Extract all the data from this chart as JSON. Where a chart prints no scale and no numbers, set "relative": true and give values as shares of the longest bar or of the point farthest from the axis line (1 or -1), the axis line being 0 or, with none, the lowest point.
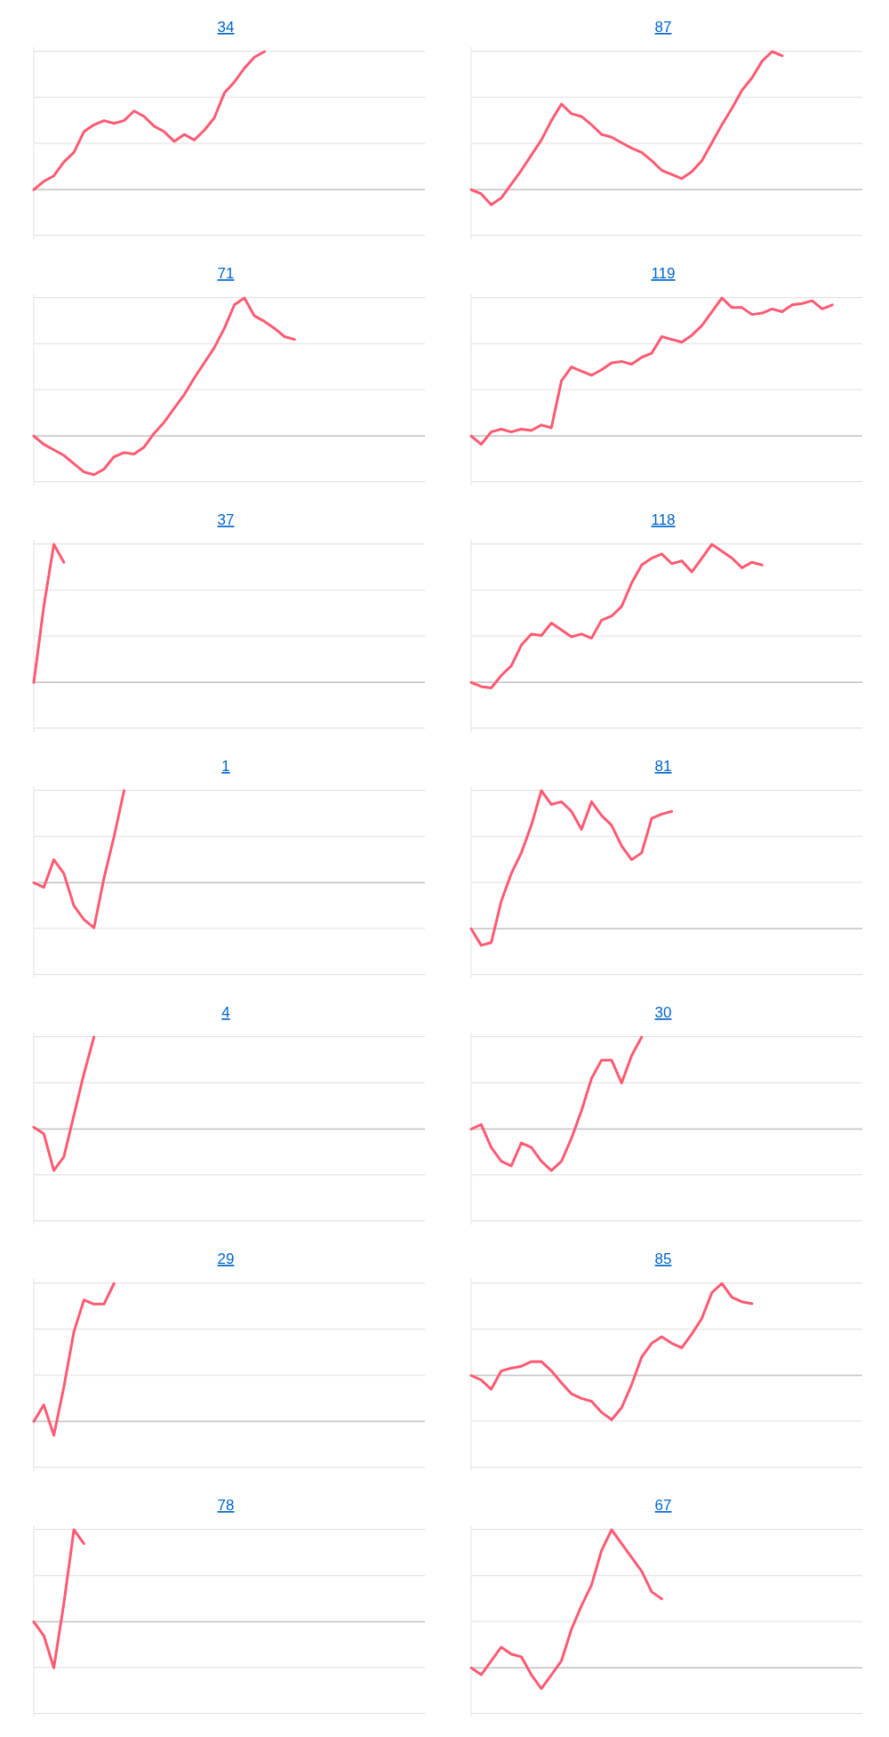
{
  "chart_data": [
    {
      "type": "line",
      "title": "34",
      "relative": true,
      "categories": [
        null,
        null,
        null,
        null,
        null,
        null,
        null,
        null,
        null,
        null,
        null,
        null,
        null,
        null,
        null,
        null,
        null,
        null,
        null,
        null,
        null,
        null,
        null,
        null,
        null,
        null,
        null,
        null,
        null,
        null,
        null,
        null,
        null,
        null,
        null,
        null,
        null,
        null,
        null,
        null
      ],
      "series": [
        {
          "color": "#ff5a72",
          "values": [
            0,
            0.06,
            0.1,
            0.2,
            0.27,
            0.42,
            0.47,
            0.5,
            0.48,
            0.5,
            0.57,
            0.53,
            0.46,
            0.42,
            0.35,
            0.4,
            0.36,
            0.43,
            0.52,
            0.7,
            0.78,
            0.88,
            0.96,
            1,
            null,
            null,
            null,
            null,
            null,
            null,
            null,
            null,
            null,
            null,
            null,
            null,
            null,
            null,
            null,
            null
          ]
        }
      ]
    },
    {
      "type": "line",
      "title": "87",
      "relative": true,
      "categories": [
        null,
        null,
        null,
        null,
        null,
        null,
        null,
        null,
        null,
        null,
        null,
        null,
        null,
        null,
        null,
        null,
        null,
        null,
        null,
        null,
        null,
        null,
        null,
        null,
        null,
        null,
        null,
        null,
        null,
        null,
        null,
        null,
        null,
        null,
        null,
        null,
        null,
        null,
        null,
        null
      ],
      "series": [
        {
          "color": "#ff5a72",
          "values": [
            0,
            -0.03,
            -0.11,
            -0.06,
            0.04,
            0.14,
            0.25,
            0.36,
            0.5,
            0.62,
            0.55,
            0.53,
            0.47,
            0.4,
            0.38,
            0.34,
            0.3,
            0.27,
            0.21,
            0.14,
            0.11,
            0.08,
            0.13,
            0.21,
            0.34,
            0.47,
            0.59,
            0.72,
            0.81,
            0.93,
            1,
            0.97,
            null,
            null,
            null,
            null,
            null,
            null,
            null,
            null
          ]
        }
      ]
    },
    {
      "type": "line",
      "title": "71",
      "relative": true,
      "categories": [
        null,
        null,
        null,
        null,
        null,
        null,
        null,
        null,
        null,
        null,
        null,
        null,
        null,
        null,
        null,
        null,
        null,
        null,
        null,
        null,
        null,
        null,
        null,
        null,
        null,
        null,
        null,
        null,
        null,
        null,
        null,
        null,
        null,
        null,
        null,
        null,
        null,
        null,
        null,
        null
      ],
      "series": [
        {
          "color": "#ff5a72",
          "values": [
            0,
            -0.06,
            -0.1,
            -0.14,
            -0.2,
            -0.26,
            -0.28,
            -0.24,
            -0.15,
            -0.12,
            -0.13,
            -0.08,
            0.02,
            0.1,
            0.2,
            0.3,
            0.42,
            0.53,
            0.64,
            0.78,
            0.95,
            1,
            0.87,
            0.83,
            0.78,
            0.72,
            0.7,
            null,
            null,
            null,
            null,
            null,
            null,
            null,
            null,
            null,
            null,
            null,
            null,
            null
          ]
        }
      ]
    },
    {
      "type": "line",
      "title": "119",
      "relative": true,
      "categories": [
        null,
        null,
        null,
        null,
        null,
        null,
        null,
        null,
        null,
        null,
        null,
        null,
        null,
        null,
        null,
        null,
        null,
        null,
        null,
        null,
        null,
        null,
        null,
        null,
        null,
        null,
        null,
        null,
        null,
        null,
        null,
        null,
        null,
        null,
        null,
        null,
        null,
        null,
        null,
        null
      ],
      "series": [
        {
          "color": "#ff5a72",
          "values": [
            0,
            -0.06,
            0.03,
            0.05,
            0.03,
            0.05,
            0.04,
            0.08,
            0.06,
            0.4,
            0.5,
            0.47,
            0.44,
            0.48,
            0.53,
            0.54,
            0.52,
            0.57,
            0.6,
            0.72,
            0.7,
            0.68,
            0.73,
            0.8,
            0.9,
            1,
            0.93,
            0.93,
            0.88,
            0.89,
            0.92,
            0.9,
            0.95,
            0.96,
            0.98,
            0.92,
            0.95,
            null,
            null,
            null
          ]
        }
      ]
    },
    {
      "type": "line",
      "title": "37",
      "relative": true,
      "categories": [
        null,
        null,
        null,
        null,
        null,
        null,
        null,
        null,
        null,
        null,
        null,
        null,
        null,
        null,
        null,
        null,
        null,
        null,
        null,
        null,
        null,
        null,
        null,
        null,
        null,
        null,
        null,
        null,
        null,
        null,
        null,
        null,
        null,
        null,
        null,
        null,
        null,
        null,
        null,
        null
      ],
      "series": [
        {
          "color": "#ff5a72",
          "values": [
            0,
            0.55,
            1,
            0.87,
            null,
            null,
            null,
            null,
            null,
            null,
            null,
            null,
            null,
            null,
            null,
            null,
            null,
            null,
            null,
            null,
            null,
            null,
            null,
            null,
            null,
            null,
            null,
            null,
            null,
            null,
            null,
            null,
            null,
            null,
            null,
            null,
            null,
            null,
            null,
            null
          ]
        }
      ]
    },
    {
      "type": "line",
      "title": "118",
      "relative": true,
      "categories": [
        null,
        null,
        null,
        null,
        null,
        null,
        null,
        null,
        null,
        null,
        null,
        null,
        null,
        null,
        null,
        null,
        null,
        null,
        null,
        null,
        null,
        null,
        null,
        null,
        null,
        null,
        null,
        null,
        null,
        null,
        null,
        null,
        null,
        null,
        null,
        null,
        null,
        null,
        null,
        null
      ],
      "series": [
        {
          "color": "#ff5a72",
          "values": [
            0,
            -0.03,
            -0.04,
            0.05,
            0.12,
            0.27,
            0.35,
            0.34,
            0.43,
            0.38,
            0.33,
            0.35,
            0.32,
            0.45,
            0.48,
            0.55,
            0.72,
            0.85,
            0.9,
            0.93,
            0.86,
            0.88,
            0.8,
            0.9,
            1,
            0.95,
            0.9,
            0.83,
            0.87,
            0.85,
            null,
            null,
            null,
            null,
            null,
            null,
            null,
            null,
            null,
            null
          ]
        }
      ]
    },
    {
      "type": "line",
      "title": "1",
      "relative": true,
      "categories": [
        null,
        null,
        null,
        null,
        null,
        null,
        null,
        null,
        null,
        null,
        null,
        null,
        null,
        null,
        null,
        null,
        null,
        null,
        null,
        null,
        null,
        null,
        null,
        null,
        null,
        null,
        null,
        null,
        null,
        null,
        null,
        null,
        null,
        null,
        null,
        null,
        null,
        null,
        null,
        null
      ],
      "series": [
        {
          "color": "#ff5a72",
          "values": [
            0,
            -0.05,
            0.25,
            0.1,
            -0.25,
            -0.4,
            -0.49,
            0.05,
            0.5,
            1,
            null,
            null,
            null,
            null,
            null,
            null,
            null,
            null,
            null,
            null,
            null,
            null,
            null,
            null,
            null,
            null,
            null,
            null,
            null,
            null,
            null,
            null,
            null,
            null,
            null,
            null,
            null,
            null,
            null,
            null
          ]
        }
      ]
    },
    {
      "type": "line",
      "title": "81",
      "relative": true,
      "categories": [
        null,
        null,
        null,
        null,
        null,
        null,
        null,
        null,
        null,
        null,
        null,
        null,
        null,
        null,
        null,
        null,
        null,
        null,
        null,
        null,
        null,
        null,
        null,
        null,
        null,
        null,
        null,
        null,
        null,
        null,
        null,
        null,
        null,
        null,
        null,
        null,
        null,
        null,
        null,
        null
      ],
      "series": [
        {
          "color": "#ff5a72",
          "values": [
            0,
            -0.12,
            -0.1,
            0.2,
            0.4,
            0.55,
            0.75,
            1,
            0.9,
            0.92,
            0.85,
            0.72,
            0.92,
            0.82,
            0.75,
            0.6,
            0.5,
            0.55,
            0.8,
            0.83,
            0.85,
            null,
            null,
            null,
            null,
            null,
            null,
            null,
            null,
            null,
            null,
            null,
            null,
            null,
            null,
            null,
            null,
            null,
            null,
            null
          ]
        }
      ]
    },
    {
      "type": "line",
      "title": "4",
      "relative": true,
      "categories": [
        null,
        null,
        null,
        null,
        null,
        null,
        null,
        null,
        null,
        null,
        null,
        null,
        null,
        null,
        null,
        null,
        null,
        null,
        null,
        null,
        null,
        null,
        null,
        null,
        null,
        null,
        null,
        null,
        null,
        null,
        null,
        null,
        null,
        null,
        null,
        null,
        null,
        null,
        null,
        null
      ],
      "series": [
        {
          "color": "#ff5a72",
          "values": [
            0.02,
            -0.05,
            -0.45,
            -0.3,
            0.15,
            0.6,
            1,
            null,
            null,
            null,
            null,
            null,
            null,
            null,
            null,
            null,
            null,
            null,
            null,
            null,
            null,
            null,
            null,
            null,
            null,
            null,
            null,
            null,
            null,
            null,
            null,
            null,
            null,
            null,
            null,
            null,
            null,
            null,
            null,
            null
          ]
        }
      ]
    },
    {
      "type": "line",
      "title": "30",
      "relative": true,
      "categories": [
        null,
        null,
        null,
        null,
        null,
        null,
        null,
        null,
        null,
        null,
        null,
        null,
        null,
        null,
        null,
        null,
        null,
        null,
        null,
        null,
        null,
        null,
        null,
        null,
        null,
        null,
        null,
        null,
        null,
        null,
        null,
        null,
        null,
        null,
        null,
        null,
        null,
        null,
        null,
        null
      ],
      "series": [
        {
          "color": "#ff5a72",
          "values": [
            0,
            0.05,
            -0.2,
            -0.35,
            -0.4,
            -0.15,
            -0.2,
            -0.35,
            -0.45,
            -0.35,
            -0.1,
            0.2,
            0.55,
            0.75,
            0.75,
            0.5,
            0.8,
            1,
            null,
            null,
            null,
            null,
            null,
            null,
            null,
            null,
            null,
            null,
            null,
            null,
            null,
            null,
            null,
            null,
            null,
            null,
            null,
            null,
            null,
            null
          ]
        }
      ]
    },
    {
      "type": "line",
      "title": "29",
      "relative": true,
      "categories": [
        null,
        null,
        null,
        null,
        null,
        null,
        null,
        null,
        null,
        null,
        null,
        null,
        null,
        null,
        null,
        null,
        null,
        null,
        null,
        null,
        null,
        null,
        null,
        null,
        null,
        null,
        null,
        null,
        null,
        null,
        null,
        null,
        null,
        null,
        null,
        null,
        null,
        null,
        null,
        null
      ],
      "series": [
        {
          "color": "#ff5a72",
          "values": [
            0,
            0.12,
            -0.1,
            0.25,
            0.65,
            0.88,
            0.85,
            0.85,
            1,
            null,
            null,
            null,
            null,
            null,
            null,
            null,
            null,
            null,
            null,
            null,
            null,
            null,
            null,
            null,
            null,
            null,
            null,
            null,
            null,
            null,
            null,
            null,
            null,
            null,
            null,
            null,
            null,
            null,
            null,
            null
          ]
        }
      ]
    },
    {
      "type": "line",
      "title": "85",
      "relative": true,
      "categories": [
        null,
        null,
        null,
        null,
        null,
        null,
        null,
        null,
        null,
        null,
        null,
        null,
        null,
        null,
        null,
        null,
        null,
        null,
        null,
        null,
        null,
        null,
        null,
        null,
        null,
        null,
        null,
        null,
        null,
        null,
        null,
        null,
        null,
        null,
        null,
        null,
        null,
        null,
        null,
        null
      ],
      "series": [
        {
          "color": "#ff5a72",
          "values": [
            0,
            -0.05,
            -0.15,
            0.05,
            0.08,
            0.1,
            0.15,
            0.15,
            0.05,
            -0.08,
            -0.2,
            -0.25,
            -0.28,
            -0.4,
            -0.48,
            -0.35,
            -0.1,
            0.2,
            0.35,
            0.42,
            0.35,
            0.3,
            0.45,
            0.62,
            0.9,
            1,
            0.85,
            0.8,
            0.78,
            null,
            null,
            null,
            null,
            null,
            null,
            null,
            null,
            null,
            null,
            null
          ]
        }
      ]
    },
    {
      "type": "line",
      "title": "78",
      "relative": true,
      "categories": [
        null,
        null,
        null,
        null,
        null,
        null,
        null,
        null,
        null,
        null,
        null,
        null,
        null,
        null,
        null,
        null,
        null,
        null,
        null,
        null,
        null,
        null,
        null,
        null,
        null,
        null,
        null,
        null,
        null,
        null,
        null,
        null,
        null,
        null,
        null,
        null,
        null,
        null,
        null,
        null
      ],
      "series": [
        {
          "color": "#ff5a72",
          "values": [
            0,
            -0.15,
            -0.5,
            0.2,
            1,
            0.85,
            null,
            null,
            null,
            null,
            null,
            null,
            null,
            null,
            null,
            null,
            null,
            null,
            null,
            null,
            null,
            null,
            null,
            null,
            null,
            null,
            null,
            null,
            null,
            null,
            null,
            null,
            null,
            null,
            null,
            null,
            null,
            null,
            null,
            null
          ]
        }
      ]
    },
    {
      "type": "line",
      "title": "67",
      "relative": true,
      "categories": [
        null,
        null,
        null,
        null,
        null,
        null,
        null,
        null,
        null,
        null,
        null,
        null,
        null,
        null,
        null,
        null,
        null,
        null,
        null,
        null,
        null,
        null,
        null,
        null,
        null,
        null,
        null,
        null,
        null,
        null,
        null,
        null,
        null,
        null,
        null,
        null,
        null,
        null,
        null,
        null
      ],
      "series": [
        {
          "color": "#ff5a72",
          "values": [
            0,
            -0.05,
            0.05,
            0.15,
            0.1,
            0.08,
            -0.05,
            -0.15,
            -0.05,
            0.05,
            0.28,
            0.45,
            0.6,
            0.85,
            1,
            0.9,
            0.8,
            0.7,
            0.55,
            0.5,
            null,
            null,
            null,
            null,
            null,
            null,
            null,
            null,
            null,
            null,
            null,
            null,
            null,
            null,
            null,
            null,
            null,
            null,
            null,
            null
          ]
        }
      ]
    }
  ]
}
